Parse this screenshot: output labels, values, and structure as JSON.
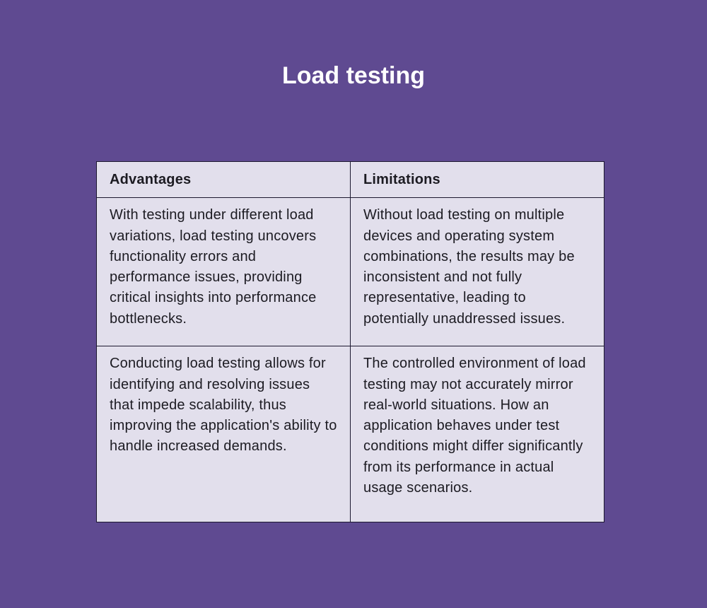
{
  "title": "Load testing",
  "table": {
    "headers": [
      "Advantages",
      "Limitations"
    ],
    "rows": [
      [
        "With testing under different load variations, load testing uncovers functionality errors and performance issues, providing critical insights into performance bottlenecks.",
        "Without load testing on multiple devices and operating system combinations, the results may be inconsistent and not fully representative, leading to potentially unaddressed issues."
      ],
      [
        "Conducting load testing allows for identifying and resolving issues that impede scalability, thus improving the application's ability to handle increased demands.",
        "The controlled environment of load testing may not accurately mirror real-world situations. How an application behaves under test conditions might differ significantly from its performance in actual usage scenarios."
      ]
    ]
  }
}
